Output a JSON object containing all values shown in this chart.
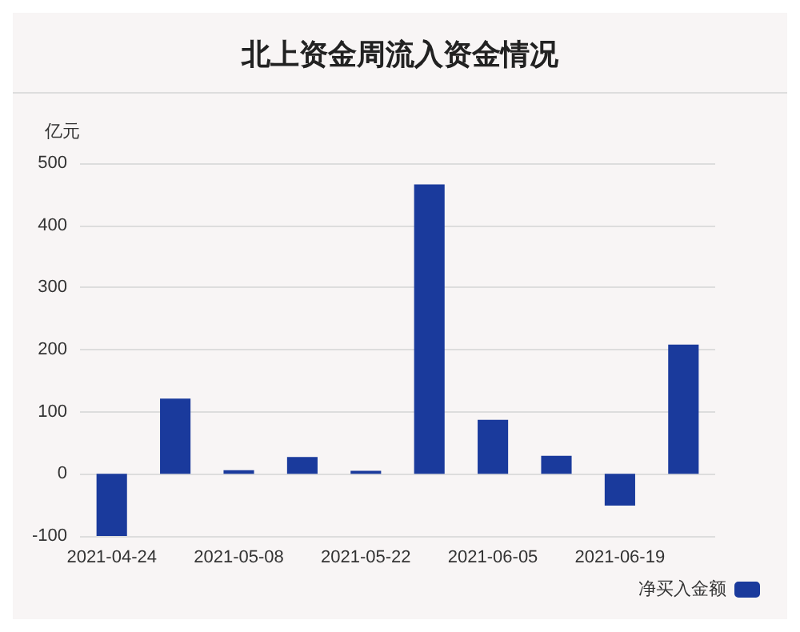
{
  "chart_data": {
    "type": "bar",
    "title": "北上资金周流入资金情况",
    "ylabel": "亿元",
    "categories": [
      "2021-04-24",
      null,
      "2021-05-08",
      null,
      "2021-05-22",
      null,
      "2021-06-05",
      null,
      "2021-06-19",
      null
    ],
    "series": [
      {
        "name": "净买入金额",
        "color": "#1a3a9c",
        "values": [
          -100,
          121,
          6,
          27,
          5,
          466,
          87,
          29,
          -51,
          208
        ]
      }
    ],
    "ylim": [
      -100,
      500
    ],
    "yticks": [
      -100,
      0,
      100,
      200,
      300,
      400,
      500
    ],
    "grid": "y",
    "legend": "bottom right"
  }
}
